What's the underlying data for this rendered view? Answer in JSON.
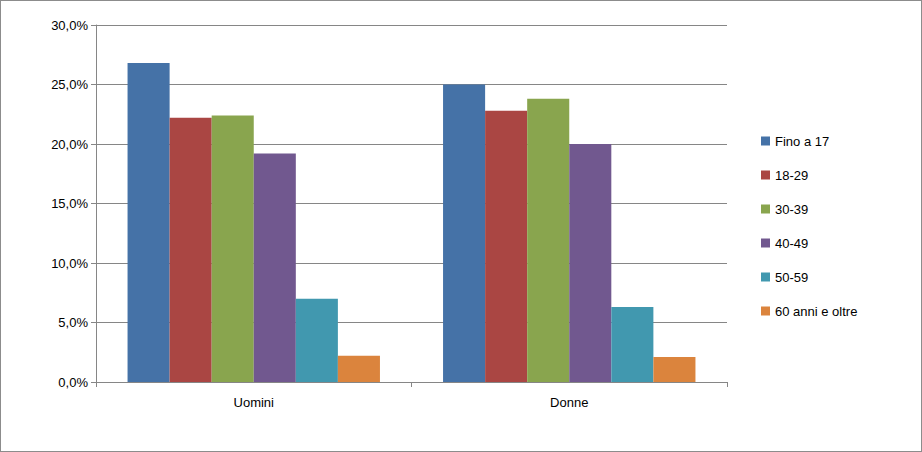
{
  "chart_data": {
    "type": "bar",
    "categories": [
      "Uomini",
      "Donne"
    ],
    "series": [
      {
        "name": "Fino a 17",
        "color": "#4572A7",
        "values": [
          26.8,
          25.0
        ]
      },
      {
        "name": "18-29",
        "color": "#AA4643",
        "values": [
          22.2,
          22.8
        ]
      },
      {
        "name": "30-39",
        "color": "#89A54E",
        "values": [
          22.4,
          23.8
        ]
      },
      {
        "name": "40-49",
        "color": "#71588F",
        "values": [
          19.2,
          20.0
        ]
      },
      {
        "name": "50-59",
        "color": "#4198AF",
        "values": [
          7.0,
          6.3
        ]
      },
      {
        "name": "60 anni e oltre",
        "color": "#DB843D",
        "values": [
          2.2,
          2.1
        ]
      }
    ],
    "ylim": [
      0,
      30
    ],
    "yticks": [
      {
        "value": 0,
        "label": "0,0%"
      },
      {
        "value": 5,
        "label": "5,0%"
      },
      {
        "value": 10,
        "label": "10,0%"
      },
      {
        "value": 15,
        "label": "15,0%"
      },
      {
        "value": 20,
        "label": "20,0%"
      },
      {
        "value": 25,
        "label": "25,0%"
      },
      {
        "value": 30,
        "label": "30,0%"
      }
    ],
    "grid": true,
    "legend": "right"
  }
}
